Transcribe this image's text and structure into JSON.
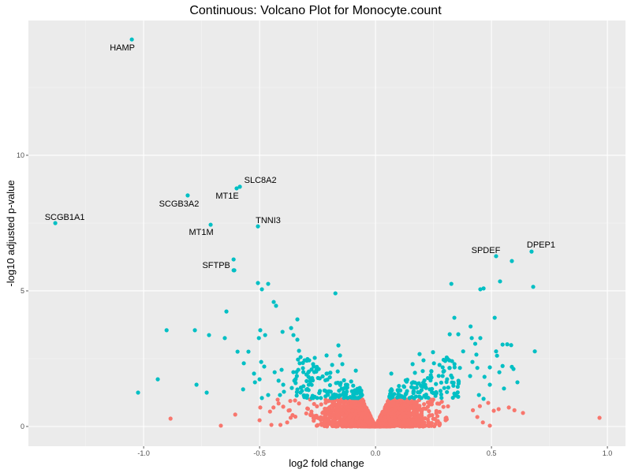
{
  "chart_data": {
    "type": "scatter",
    "title": "Continuous: Volcano Plot for Monocyte.count",
    "xlabel": "log2 fold change",
    "ylabel": "-log10 adjusted p-value",
    "xlim": [
      -1.497,
      1.078
    ],
    "ylim": [
      -0.727,
      14.97
    ],
    "xticks": [
      -1.0,
      -0.5,
      0.0,
      0.5,
      1.0
    ],
    "xtick_labels": [
      "-1.0",
      "-0.5",
      "0.0",
      "0.5",
      "1.0"
    ],
    "yticks": [
      0,
      5,
      10
    ],
    "ytick_labels": [
      "0",
      "5",
      "10"
    ],
    "grid": true,
    "legend": "none",
    "colors": {
      "significant": "#00BFC4",
      "not_significant": "#F8766D",
      "panel": "#EBEBEB",
      "grid": "#FFFFFF"
    },
    "labeled_points": [
      {
        "label": "HAMP",
        "x": -1.051,
        "y": 14.27
      },
      {
        "label": "SLC8A2",
        "x": -0.585,
        "y": 8.84
      },
      {
        "label": "MT1E",
        "x": -0.599,
        "y": 8.78
      },
      {
        "label": "SCGB3A2",
        "x": -0.81,
        "y": 8.52
      },
      {
        "label": "SCGB1A1",
        "x": -1.381,
        "y": 7.5
      },
      {
        "label": "MT1M",
        "x": -0.711,
        "y": 7.44
      },
      {
        "label": "TNNI3",
        "x": -0.507,
        "y": 7.38
      },
      {
        "label": "SFTPB",
        "x": -0.612,
        "y": 6.16
      },
      {
        "label": "SPDEF",
        "x": 0.52,
        "y": 6.28
      },
      {
        "label": "DPEP1",
        "x": 0.673,
        "y": 6.45
      }
    ],
    "significant_points": [
      [
        -0.609,
        5.76
      ],
      [
        -0.507,
        5.29
      ],
      [
        -0.463,
        5.26
      ],
      [
        -0.49,
        5.06
      ],
      [
        -0.173,
        4.91
      ],
      [
        -0.439,
        4.59
      ],
      [
        -0.429,
        4.45
      ],
      [
        -0.643,
        4.24
      ],
      [
        -0.337,
        3.95
      ],
      [
        -0.901,
        3.55
      ],
      [
        -0.779,
        3.55
      ],
      [
        -0.718,
        3.37
      ],
      [
        -0.65,
        3.26
      ],
      [
        -0.497,
        3.55
      ],
      [
        -0.476,
        3.37
      ],
      [
        -0.503,
        3.26
      ],
      [
        -0.401,
        3.49
      ],
      [
        -0.364,
        3.63
      ],
      [
        -0.354,
        3.37
      ],
      [
        -0.337,
        3.2
      ],
      [
        -0.16,
        2.99
      ],
      [
        -0.153,
        2.62
      ],
      [
        -0.211,
        2.62
      ],
      [
        -0.595,
        2.76
      ],
      [
        -0.548,
        2.76
      ],
      [
        -0.568,
        2.33
      ],
      [
        -0.493,
        2.38
      ],
      [
        -0.48,
        2.21
      ],
      [
        -0.939,
        1.74
      ],
      [
        -0.772,
        1.54
      ],
      [
        -0.728,
        1.25
      ],
      [
        -1.024,
        1.25
      ],
      [
        -0.571,
        1.37
      ],
      [
        -0.524,
        1.95
      ],
      [
        -0.52,
        1.63
      ],
      [
        -0.5,
        1.74
      ],
      [
        -0.49,
        1.05
      ],
      [
        -0.463,
        1.16
      ],
      [
        -0.435,
        2.0
      ],
      [
        -0.405,
        2.09
      ],
      [
        -0.418,
        1.69
      ],
      [
        -0.398,
        1.54
      ],
      [
        -0.395,
        1.28
      ],
      [
        -0.412,
        1.16
      ],
      [
        -0.361,
        1.42
      ],
      [
        -0.35,
        1.69
      ],
      [
        -0.333,
        2.09
      ],
      [
        -0.313,
        2.15
      ],
      [
        -0.33,
        2.79
      ],
      [
        -0.323,
        2.56
      ],
      [
        -0.306,
        2.44
      ],
      [
        -0.286,
        2.44
      ],
      [
        -0.262,
        2.53
      ],
      [
        -0.269,
        2.3
      ],
      [
        -0.187,
        2.27
      ],
      [
        -0.163,
        2.03
      ],
      [
        -0.143,
        2.3
      ],
      [
        -0.085,
        2.06
      ],
      [
        -0.105,
        1.66
      ],
      [
        -0.068,
        1.42
      ],
      [
        -0.058,
        1.16
      ],
      [
        -0.289,
        1.83
      ],
      [
        0.588,
        6.1
      ],
      [
        0.537,
        5.35
      ],
      [
        0.327,
        5.26
      ],
      [
        0.452,
        5.06
      ],
      [
        0.466,
        5.09
      ],
      [
        0.68,
        5.15
      ],
      [
        0.34,
        4.01
      ],
      [
        0.514,
        4.01
      ],
      [
        0.41,
        3.69
      ],
      [
        0.32,
        3.4
      ],
      [
        0.357,
        3.4
      ],
      [
        0.415,
        3.26
      ],
      [
        0.452,
        3.26
      ],
      [
        0.43,
        3.05
      ],
      [
        0.548,
        3.02
      ],
      [
        0.568,
        3.03
      ],
      [
        0.585,
        3.0
      ],
      [
        0.687,
        2.77
      ],
      [
        0.52,
        2.77
      ],
      [
        0.524,
        2.61
      ],
      [
        0.378,
        2.77
      ],
      [
        0.435,
        2.65
      ],
      [
        0.248,
        2.74
      ],
      [
        0.19,
        2.67
      ],
      [
        0.207,
        2.44
      ],
      [
        0.33,
        2.41
      ],
      [
        0.418,
        2.38
      ],
      [
        0.16,
        2.3
      ],
      [
        0.252,
        2.33
      ],
      [
        0.276,
        2.27
      ],
      [
        0.548,
        2.23
      ],
      [
        0.588,
        2.2
      ],
      [
        0.595,
        2.12
      ],
      [
        0.493,
        2.18
      ],
      [
        0.439,
        2.16
      ],
      [
        0.364,
        2.16
      ],
      [
        0.32,
        2.16
      ],
      [
        0.534,
        2.0
      ],
      [
        0.408,
        1.86
      ],
      [
        0.47,
        1.83
      ],
      [
        0.612,
        1.63
      ],
      [
        0.554,
        1.4
      ],
      [
        0.493,
        1.54
      ],
      [
        0.446,
        1.16
      ],
      [
        0.466,
        1.02
      ],
      [
        0.068,
        1.95
      ],
      [
        0.241,
        2.03
      ],
      [
        0.17,
        1.98
      ]
    ],
    "not_significant_points": [
      [
        -0.884,
        0.29
      ],
      [
        -0.667,
        0.03
      ],
      [
        -0.605,
        0.44
      ],
      [
        -0.497,
        0.7
      ],
      [
        -0.5,
        0.23
      ],
      [
        -0.449,
        0.06
      ],
      [
        -0.422,
        0.99
      ],
      [
        -0.398,
        0.73
      ],
      [
        -0.44,
        0.7
      ],
      [
        -0.418,
        0.85
      ],
      [
        -0.455,
        0.55
      ],
      [
        -0.381,
        0.15
      ],
      [
        -0.347,
        0.96
      ],
      [
        -0.33,
        0.85
      ],
      [
        -0.37,
        0.6
      ],
      [
        -0.41,
        0.06
      ],
      [
        0.966,
        0.32
      ],
      [
        0.636,
        0.5
      ],
      [
        0.599,
        0.6
      ],
      [
        0.575,
        0.7
      ],
      [
        0.531,
        0.64
      ],
      [
        0.51,
        0.58
      ],
      [
        0.486,
        0.87
      ],
      [
        0.493,
        0.03
      ],
      [
        0.463,
        0.15
      ],
      [
        0.439,
        0.35
      ],
      [
        0.45,
        0.75
      ],
      [
        0.42,
        0.6
      ]
    ],
    "dense_cloud": {
      "not_significant_count": 1800,
      "significant_count": 260,
      "significance_threshold": 1.0
    }
  }
}
